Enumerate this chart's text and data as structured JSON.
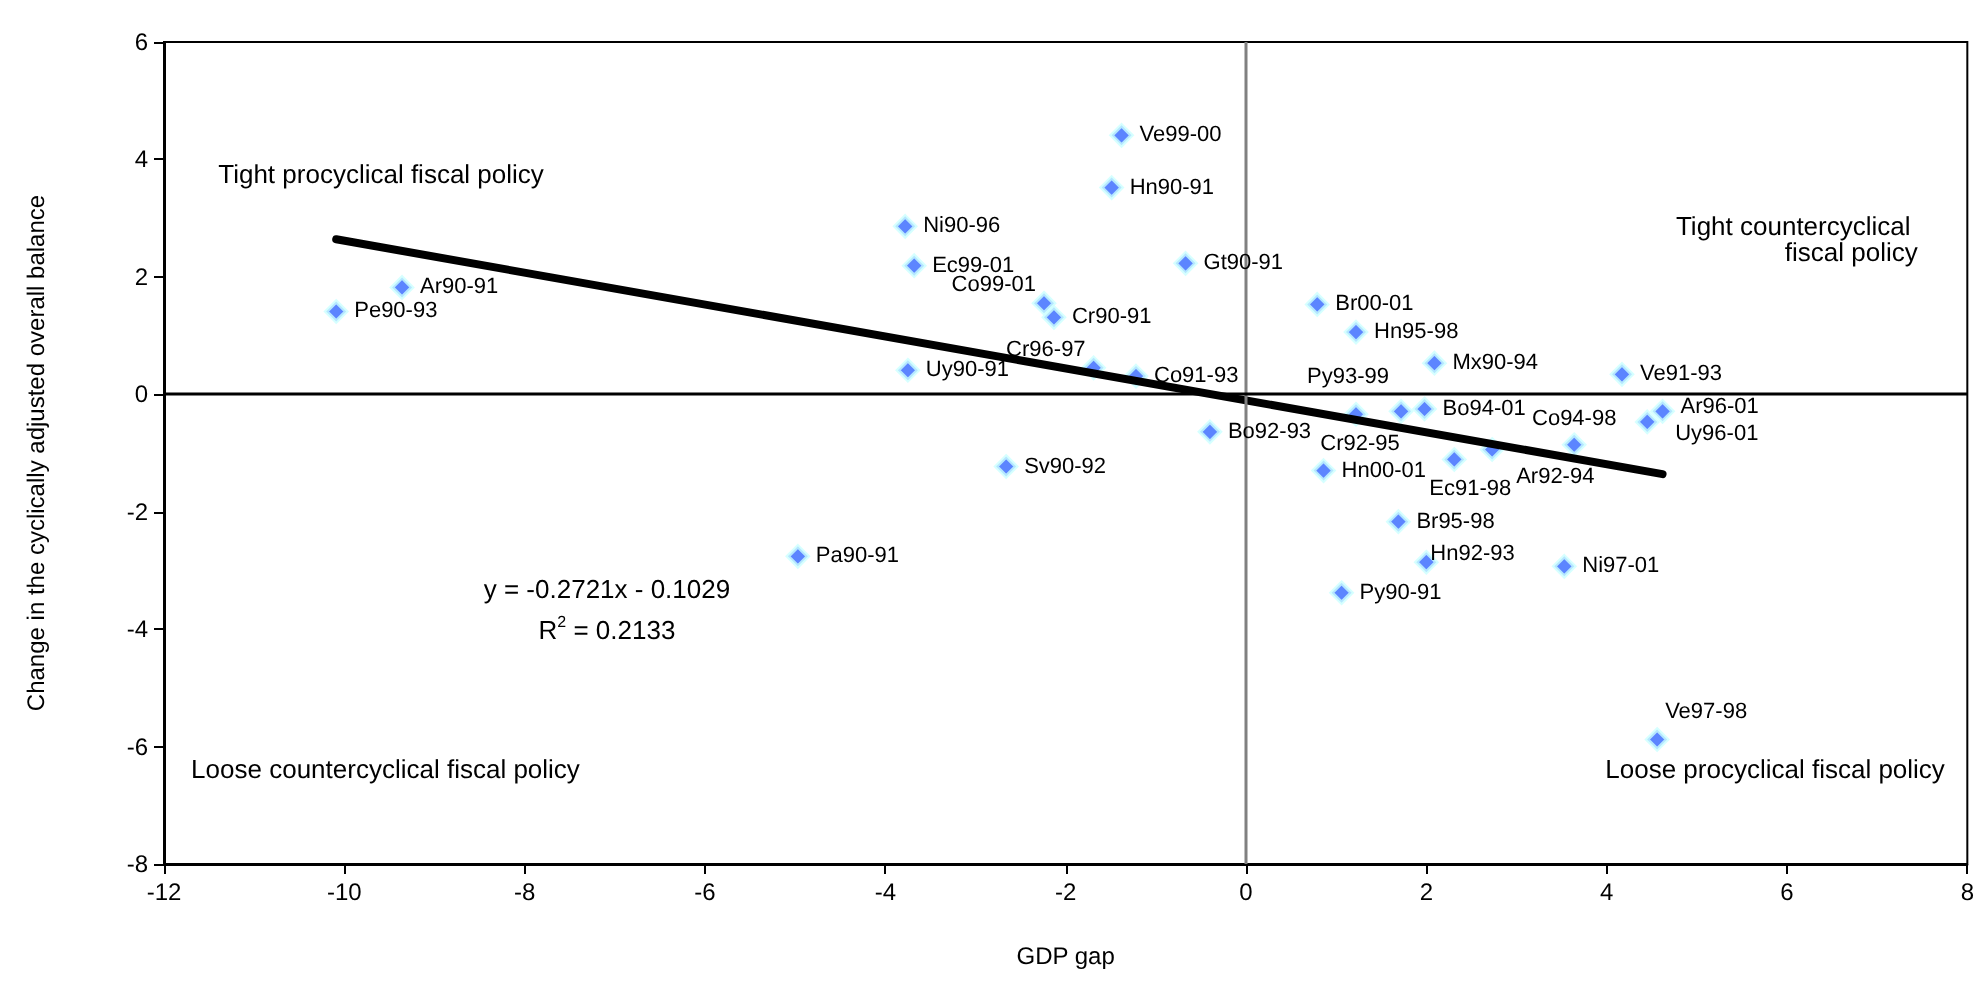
{
  "chart_data": {
    "type": "scatter",
    "xlabel": "GDP gap",
    "ylabel": "Change in the cyclically adjusted overall balance",
    "xlim": [
      -12,
      8
    ],
    "xticks": [
      -12,
      -10,
      -8,
      -6,
      -4,
      -2,
      0,
      2,
      4,
      6,
      8
    ],
    "ylim": [
      -8,
      6
    ],
    "yticks": [
      -8,
      -6,
      -4,
      -2,
      0,
      2,
      4,
      6
    ],
    "grid": false,
    "series": [
      {
        "marker": "diamond",
        "color": "#3366ff",
        "x": [
          -10.09,
          -9.36,
          -3.78,
          -3.68,
          -3.75,
          -2.66,
          -1.38,
          -1.49,
          -0.67,
          -2.24,
          -2.13,
          -1.69,
          -1.22,
          0.79,
          1.22,
          2.09,
          4.17,
          -0.4,
          1.22,
          1.72,
          1.98,
          0.86,
          2.31,
          2.73,
          3.64,
          4.62,
          4.45,
          1.69,
          2.0,
          3.53,
          1.06,
          4.56,
          -4.97
        ],
        "values": [
          1.41,
          1.82,
          2.86,
          2.19,
          0.41,
          -1.23,
          4.41,
          3.52,
          2.23,
          1.55,
          1.31,
          0.45,
          0.31,
          1.53,
          1.06,
          0.53,
          0.34,
          -0.64,
          -0.34,
          -0.29,
          -0.25,
          -1.3,
          -1.11,
          -0.94,
          -0.86,
          -0.29,
          -0.47,
          -2.17,
          -2.86,
          -2.93,
          -3.38,
          -5.88,
          -2.76
        ]
      },
      {
        "type": "line",
        "color": "#000000",
        "x": [
          -10.09,
          4.62
        ],
        "values": [
          2.64,
          -1.36
        ]
      }
    ],
    "ref_lines": [
      {
        "axis": "x",
        "value": 0,
        "color": "#808080"
      },
      {
        "axis": "y",
        "value": 0,
        "color": "#000000"
      }
    ],
    "annotations": [
      "Tight procyclical fiscal policy",
      "Tight countercyclical fiscal policy",
      "Loose countercyclical fiscal policy",
      "Loose procyclical fiscal policy",
      "y = -0.2721x - 0.1029",
      "R$^{2}$ = 0.2133",
      {
        "text": "Pe90-93",
        "x": -10.09,
        "y": 1.41
      },
      {
        "text": "Ar90-91",
        "x": -9.36,
        "y": 1.82
      },
      {
        "text": "Ni90-96",
        "x": -3.78,
        "y": 2.86
      },
      {
        "text": "Ec99-01",
        "x": -3.68,
        "y": 2.19
      },
      {
        "text": "Uy90-91",
        "x": -3.75,
        "y": 0.41
      },
      {
        "text": "Sv90-92",
        "x": -2.66,
        "y": -1.23
      },
      {
        "text": "Ve99-00",
        "x": -1.38,
        "y": 4.41
      },
      {
        "text": "Hn90-91",
        "x": -1.49,
        "y": 3.52
      },
      {
        "text": "Gt90-91",
        "x": -0.67,
        "y": 2.23
      },
      {
        "text": "Co99-01",
        "x": -2.24,
        "y": 1.55
      },
      {
        "text": "Cr90-91",
        "x": -2.13,
        "y": 1.31
      },
      {
        "text": "Cr96-97",
        "x": -1.69,
        "y": 0.45
      },
      {
        "text": "Co91-93",
        "x": -1.22,
        "y": 0.31
      },
      {
        "text": "Br00-01",
        "x": 0.79,
        "y": 1.53
      },
      {
        "text": "Hn95-98",
        "x": 1.22,
        "y": 1.06
      },
      {
        "text": "Mx90-94",
        "x": 2.09,
        "y": 0.53
      },
      {
        "text": "Ve91-93",
        "x": 4.17,
        "y": 0.34
      },
      {
        "text": "Bo92-93",
        "x": -0.4,
        "y": -0.64
      },
      {
        "text": "Cr92-95",
        "x": 1.22,
        "y": -0.34
      },
      {
        "text": "Py93-99",
        "x": 1.72,
        "y": -0.29
      },
      {
        "text": "Bo94-01",
        "x": 1.98,
        "y": -0.25
      },
      {
        "text": "Hn00-01",
        "x": 0.86,
        "y": -1.3
      },
      {
        "text": "Ec91-98",
        "x": 2.31,
        "y": -1.11
      },
      {
        "text": "Ar92-94",
        "x": 2.73,
        "y": -0.94
      },
      {
        "text": "Co94-98",
        "x": 3.64,
        "y": -0.86
      },
      {
        "text": "Ar96-01",
        "x": 4.62,
        "y": -0.29
      },
      {
        "text": "Uy96-01",
        "x": 4.45,
        "y": -0.47
      },
      {
        "text": "Br95-98",
        "x": 1.69,
        "y": -2.17
      },
      {
        "text": "Hn92-93",
        "x": 2.0,
        "y": -2.86
      },
      {
        "text": "Ni97-01",
        "x": 3.53,
        "y": -2.93
      },
      {
        "text": "Py90-91",
        "x": 1.06,
        "y": -3.38
      },
      {
        "text": "Ve97-98",
        "x": 4.56,
        "y": -5.88
      },
      {
        "text": "Pa90-91",
        "x": -4.97,
        "y": -2.76
      }
    ]
  }
}
